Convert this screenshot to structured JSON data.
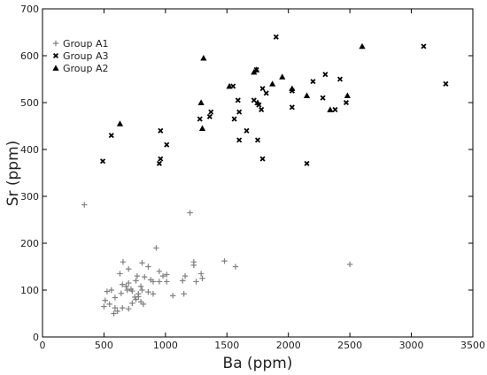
{
  "chart_data": {
    "type": "scatter",
    "xlabel": "Ba (ppm)",
    "ylabel": "Sr (ppm)",
    "xlim": [
      0,
      3500
    ],
    "ylim": [
      0,
      700
    ],
    "x_ticks": [
      "0",
      "500",
      "1000",
      "1500",
      "2000",
      "2500",
      "3000",
      "3500"
    ],
    "y_ticks": [
      "0",
      "100",
      "200",
      "300",
      "400",
      "500",
      "600",
      "700"
    ],
    "grid": false,
    "legend_position": "top-left",
    "series": [
      {
        "name": "Group A1",
        "marker": "plus",
        "color": "#808080",
        "points": [
          [
            340,
            282
          ],
          [
            1200,
            265
          ],
          [
            925,
            190
          ],
          [
            655,
            160
          ],
          [
            810,
            158
          ],
          [
            1230,
            160
          ],
          [
            1480,
            162
          ],
          [
            1230,
            153
          ],
          [
            1570,
            150
          ],
          [
            2500,
            155
          ],
          [
            700,
            145
          ],
          [
            860,
            150
          ],
          [
            950,
            140
          ],
          [
            1010,
            133
          ],
          [
            980,
            130
          ],
          [
            1160,
            130
          ],
          [
            1290,
            135
          ],
          [
            1300,
            125
          ],
          [
            1140,
            120
          ],
          [
            1250,
            118
          ],
          [
            630,
            135
          ],
          [
            770,
            130
          ],
          [
            830,
            128
          ],
          [
            880,
            122
          ],
          [
            900,
            118
          ],
          [
            950,
            118
          ],
          [
            1010,
            118
          ],
          [
            760,
            120
          ],
          [
            700,
            115
          ],
          [
            650,
            112
          ],
          [
            680,
            108
          ],
          [
            720,
            102
          ],
          [
            800,
            108
          ],
          [
            810,
            100
          ],
          [
            860,
            96
          ],
          [
            900,
            92
          ],
          [
            780,
            92
          ],
          [
            730,
            98
          ],
          [
            690,
            100
          ],
          [
            640,
            93
          ],
          [
            560,
            100
          ],
          [
            525,
            97
          ],
          [
            590,
            84
          ],
          [
            510,
            78
          ],
          [
            545,
            70
          ],
          [
            500,
            65
          ],
          [
            590,
            62
          ],
          [
            610,
            55
          ],
          [
            650,
            62
          ],
          [
            700,
            60
          ],
          [
            730,
            72
          ],
          [
            760,
            80
          ],
          [
            800,
            75
          ],
          [
            750,
            85
          ],
          [
            780,
            86
          ],
          [
            1060,
            88
          ],
          [
            1150,
            92
          ],
          [
            820,
            70
          ],
          [
            580,
            50
          ]
        ]
      },
      {
        "name": "Group A3",
        "marker": "x",
        "color": "#000000",
        "points": [
          [
            1900,
            640
          ],
          [
            3100,
            620
          ],
          [
            1740,
            570
          ],
          [
            3280,
            540
          ],
          [
            2300,
            560
          ],
          [
            2420,
            550
          ],
          [
            2200,
            545
          ],
          [
            1790,
            530
          ],
          [
            1820,
            520
          ],
          [
            2030,
            525
          ],
          [
            1550,
            535
          ],
          [
            1590,
            505
          ],
          [
            1720,
            505
          ],
          [
            1760,
            495
          ],
          [
            2280,
            510
          ],
          [
            2470,
            500
          ],
          [
            2030,
            490
          ],
          [
            2380,
            485
          ],
          [
            1780,
            485
          ],
          [
            1600,
            480
          ],
          [
            1370,
            480
          ],
          [
            1560,
            465
          ],
          [
            1280,
            465
          ],
          [
            1360,
            470
          ],
          [
            1660,
            440
          ],
          [
            1600,
            420
          ],
          [
            1750,
            420
          ],
          [
            960,
            440
          ],
          [
            1010,
            410
          ],
          [
            560,
            430
          ],
          [
            960,
            380
          ],
          [
            950,
            370
          ],
          [
            490,
            375
          ],
          [
            1790,
            380
          ],
          [
            2150,
            370
          ]
        ]
      },
      {
        "name": "Group A2",
        "marker": "triangle",
        "color": "#000000",
        "points": [
          [
            2600,
            620
          ],
          [
            1310,
            595
          ],
          [
            1740,
            570
          ],
          [
            1720,
            565
          ],
          [
            1950,
            555
          ],
          [
            1870,
            540
          ],
          [
            2030,
            530
          ],
          [
            1520,
            535
          ],
          [
            2150,
            515
          ],
          [
            2480,
            515
          ],
          [
            1290,
            500
          ],
          [
            1750,
            500
          ],
          [
            2340,
            485
          ],
          [
            1300,
            445
          ],
          [
            630,
            455
          ]
        ]
      }
    ]
  }
}
